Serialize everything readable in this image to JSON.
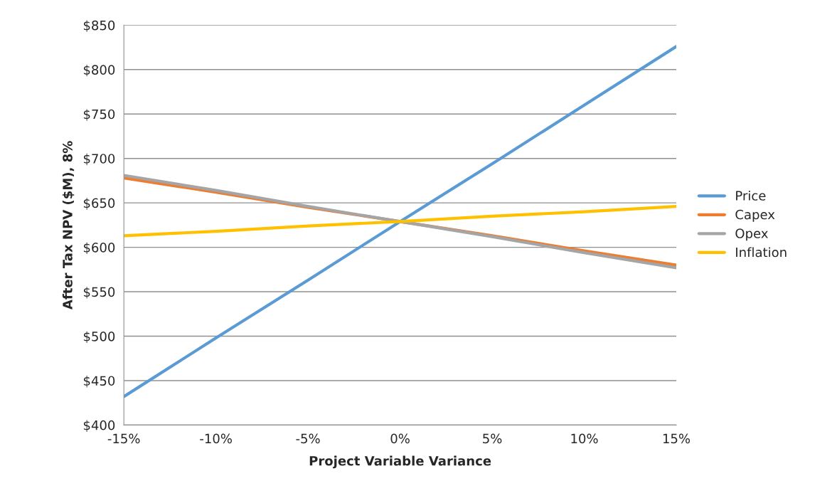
{
  "chart_data": {
    "type": "line",
    "xlabel": "Project Variable Variance",
    "ylabel": "After Tax NPV ($M), 8%",
    "categories": [
      "-15%",
      "-10%",
      "-5%",
      "0%",
      "5%",
      "10%",
      "15%"
    ],
    "series": [
      {
        "name": "Price",
        "color": "#5b9bd5",
        "values": [
          432,
          498,
          563,
          629,
          694,
          760,
          826
        ]
      },
      {
        "name": "Capex",
        "color": "#ed7d31",
        "values": [
          678,
          662,
          645,
          629,
          613,
          596,
          580
        ]
      },
      {
        "name": "Opex",
        "color": "#a5a5a5",
        "values": [
          681,
          664,
          646,
          629,
          612,
          594,
          577
        ]
      },
      {
        "name": "Inflation",
        "color": "#ffc000",
        "values": [
          613,
          618,
          624,
          629,
          635,
          640,
          646
        ]
      }
    ],
    "ylim": [
      400,
      850
    ],
    "yticks": [
      {
        "value": 400,
        "label": "$400"
      },
      {
        "value": 450,
        "label": "$450"
      },
      {
        "value": 500,
        "label": "$500"
      },
      {
        "value": 550,
        "label": "$550"
      },
      {
        "value": 600,
        "label": "$600"
      },
      {
        "value": 650,
        "label": "$650"
      },
      {
        "value": 700,
        "label": "$700"
      },
      {
        "value": 750,
        "label": "$750"
      },
      {
        "value": 800,
        "label": "$800"
      },
      {
        "value": 850,
        "label": "$850"
      }
    ],
    "grid": "y",
    "legend": "right",
    "marker": "none",
    "line_style": "solid"
  }
}
